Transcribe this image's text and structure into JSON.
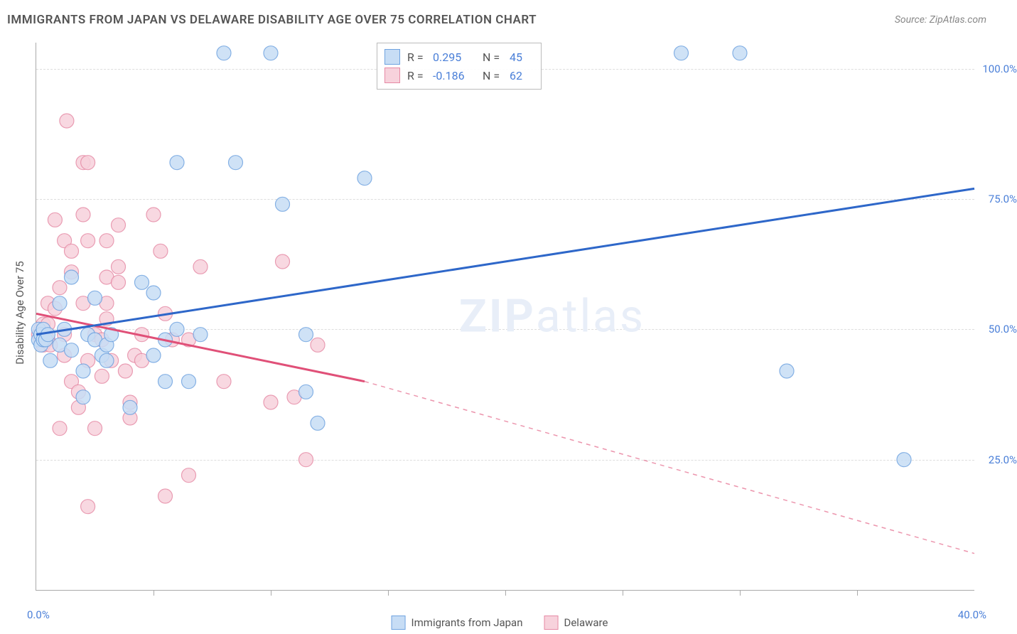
{
  "title": "IMMIGRANTS FROM JAPAN VS DELAWARE DISABILITY AGE OVER 75 CORRELATION CHART",
  "source": "Source: ZipAtlas.com",
  "watermark_prefix": "ZIP",
  "watermark_suffix": "atlas",
  "chart": {
    "type": "scatter",
    "ylabel": "Disability Age Over 75",
    "xlim": [
      0,
      40
    ],
    "ylim": [
      0,
      105
    ],
    "x_axis_min_label": "0.0%",
    "x_axis_max_label": "40.0%",
    "background_color": "#ffffff",
    "grid_color": "#dddddd",
    "ytick_labels": [
      "25.0%",
      "50.0%",
      "75.0%",
      "100.0%"
    ],
    "ytick_values": [
      25,
      50,
      75,
      100
    ],
    "ytick_color": "#4a7fd8",
    "xtick_positions": [
      5,
      10,
      15,
      20,
      25,
      30,
      35
    ],
    "bottom_legend": {
      "series1": "Immigrants from Japan",
      "series2": "Delaware"
    },
    "stats_legend": {
      "rows": [
        {
          "swatch_fill": "#c7ddf5",
          "swatch_border": "#6fa3e0",
          "r": "0.295",
          "n": "45"
        },
        {
          "swatch_fill": "#f7d2dc",
          "swatch_border": "#e68aa5",
          "r": "-0.186",
          "n": "62"
        }
      ]
    },
    "series1": {
      "label": "Immigrants from Japan",
      "fill": "#c7ddf5",
      "stroke": "#6fa3e0",
      "line_color": "#2e67c9",
      "marker_radius": 10,
      "trend_start": [
        0,
        49
      ],
      "trend_end": [
        40,
        77
      ],
      "trend_dash_start_x": 40,
      "points": [
        [
          0.1,
          48
        ],
        [
          0.1,
          50
        ],
        [
          0.2,
          47
        ],
        [
          0.2,
          49
        ],
        [
          0.3,
          48
        ],
        [
          0.3,
          50
        ],
        [
          0.4,
          48
        ],
        [
          0.5,
          49
        ],
        [
          0.6,
          44
        ],
        [
          1.0,
          47
        ],
        [
          1.0,
          55
        ],
        [
          1.2,
          50
        ],
        [
          1.5,
          46
        ],
        [
          1.5,
          60
        ],
        [
          2.0,
          42
        ],
        [
          2.0,
          37
        ],
        [
          2.2,
          49
        ],
        [
          2.5,
          56
        ],
        [
          2.5,
          48
        ],
        [
          2.8,
          45
        ],
        [
          3.0,
          44
        ],
        [
          3.0,
          47
        ],
        [
          3.2,
          49
        ],
        [
          4.0,
          35
        ],
        [
          4.5,
          59
        ],
        [
          5.0,
          57
        ],
        [
          5.0,
          45
        ],
        [
          5.5,
          40
        ],
        [
          5.5,
          48
        ],
        [
          6.0,
          82
        ],
        [
          6.0,
          50
        ],
        [
          6.5,
          40
        ],
        [
          7.0,
          49
        ],
        [
          8.0,
          103
        ],
        [
          8.5,
          82
        ],
        [
          10.0,
          103
        ],
        [
          10.5,
          74
        ],
        [
          11.5,
          38
        ],
        [
          11.5,
          49
        ],
        [
          12.0,
          32
        ],
        [
          14.0,
          79
        ],
        [
          27.5,
          103
        ],
        [
          30.0,
          103
        ],
        [
          32.0,
          42
        ],
        [
          37.0,
          25
        ]
      ]
    },
    "series2": {
      "label": "Delaware",
      "fill": "#f7d2dc",
      "stroke": "#e68aa5",
      "line_color": "#e05078",
      "marker_radius": 10,
      "trend_start": [
        0,
        53
      ],
      "trend_end": [
        14,
        40
      ],
      "trend_dash_end": [
        40,
        7
      ],
      "points": [
        [
          0.1,
          49
        ],
        [
          0.2,
          50
        ],
        [
          0.2,
          48
        ],
        [
          0.3,
          47
        ],
        [
          0.3,
          51
        ],
        [
          0.4,
          49
        ],
        [
          0.5,
          48
        ],
        [
          0.5,
          51
        ],
        [
          0.5,
          55
        ],
        [
          0.6,
          47
        ],
        [
          0.8,
          71
        ],
        [
          0.8,
          54
        ],
        [
          1.0,
          31
        ],
        [
          1.0,
          58
        ],
        [
          1.2,
          67
        ],
        [
          1.2,
          45
        ],
        [
          1.2,
          49
        ],
        [
          1.3,
          90
        ],
        [
          1.5,
          61
        ],
        [
          1.5,
          65
        ],
        [
          1.5,
          40
        ],
        [
          1.8,
          38
        ],
        [
          1.8,
          35
        ],
        [
          2.0,
          72
        ],
        [
          2.0,
          55
        ],
        [
          2.0,
          82
        ],
        [
          2.2,
          67
        ],
        [
          2.2,
          82
        ],
        [
          2.2,
          16
        ],
        [
          2.2,
          44
        ],
        [
          2.5,
          49
        ],
        [
          2.5,
          31
        ],
        [
          2.8,
          48
        ],
        [
          2.8,
          41
        ],
        [
          3.0,
          67
        ],
        [
          3.0,
          55
        ],
        [
          3.0,
          52
        ],
        [
          3.0,
          60
        ],
        [
          3.2,
          44
        ],
        [
          3.5,
          70
        ],
        [
          3.5,
          62
        ],
        [
          3.5,
          59
        ],
        [
          3.8,
          42
        ],
        [
          4.0,
          36
        ],
        [
          4.0,
          33
        ],
        [
          4.2,
          45
        ],
        [
          4.5,
          49
        ],
        [
          4.5,
          44
        ],
        [
          5.0,
          72
        ],
        [
          5.3,
          65
        ],
        [
          5.5,
          53
        ],
        [
          5.5,
          18
        ],
        [
          5.8,
          48
        ],
        [
          6.5,
          48
        ],
        [
          6.5,
          22
        ],
        [
          7.0,
          62
        ],
        [
          8.0,
          40
        ],
        [
          10.0,
          36
        ],
        [
          10.5,
          63
        ],
        [
          11.0,
          37
        ],
        [
          11.5,
          25
        ],
        [
          12.0,
          47
        ]
      ]
    }
  }
}
